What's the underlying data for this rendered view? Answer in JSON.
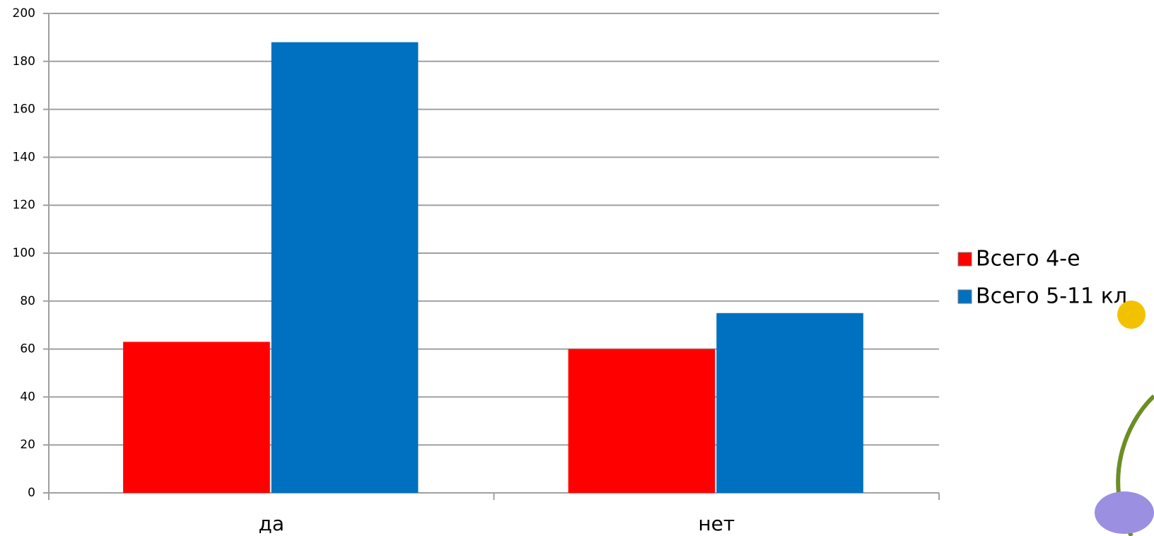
{
  "chart_data": {
    "type": "bar",
    "categories": [
      "да",
      "нет"
    ],
    "series": [
      {
        "name": "Всего 4-е",
        "color": "#ff0000",
        "values": [
          63,
          60
        ]
      },
      {
        "name": "Всего 5-11 кл",
        "color": "#0070c0",
        "values": [
          188,
          75
        ]
      }
    ],
    "ylim": [
      0,
      200
    ],
    "yticks": [
      0,
      20,
      40,
      60,
      80,
      100,
      120,
      140,
      160,
      180,
      200
    ],
    "grid": true,
    "legend": "right"
  }
}
